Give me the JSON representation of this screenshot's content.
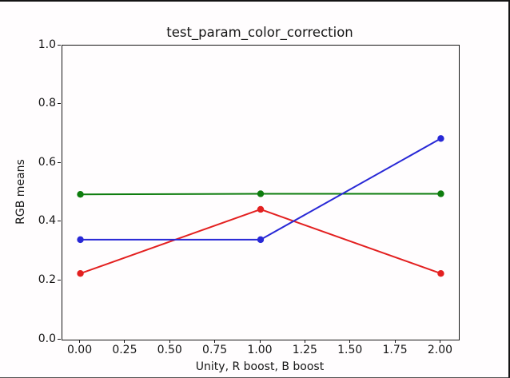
{
  "window": {
    "background": "#fffdfe",
    "edge_color": "#141414",
    "spine_color": "#151515",
    "text_color": "#151515"
  },
  "chart_data": {
    "type": "line",
    "title": "test_param_color_correction",
    "xlabel": "Unity, R boost, B boost",
    "ylabel": "RGB means",
    "x": [
      0,
      1,
      2
    ],
    "series": [
      {
        "name": "red",
        "color": "#e32020",
        "values": [
          0.225,
          0.443,
          0.225
        ]
      },
      {
        "name": "green",
        "color": "#0e7d0e",
        "values": [
          0.494,
          0.496,
          0.496
        ]
      },
      {
        "name": "blue",
        "color": "#2828d6",
        "values": [
          0.34,
          0.34,
          0.684
        ]
      }
    ],
    "xticks": [
      0,
      0.25,
      0.5,
      0.75,
      1,
      1.25,
      1.5,
      1.75,
      2
    ],
    "xtick_labels": [
      "0.00",
      "0.25",
      "0.50",
      "0.75",
      "1.00",
      "1.25",
      "1.50",
      "1.75",
      "2.00"
    ],
    "yticks": [
      0,
      0.2,
      0.4,
      0.6,
      0.8,
      1
    ],
    "ytick_labels": [
      "0.0",
      "0.2",
      "0.4",
      "0.6",
      "0.8",
      "1.0"
    ],
    "xlim": [
      -0.1,
      2.1
    ],
    "ylim": [
      0,
      1
    ],
    "grid": false,
    "legend": "none",
    "marker": "circle",
    "marker_radius": 4.2,
    "line_width": 2
  }
}
